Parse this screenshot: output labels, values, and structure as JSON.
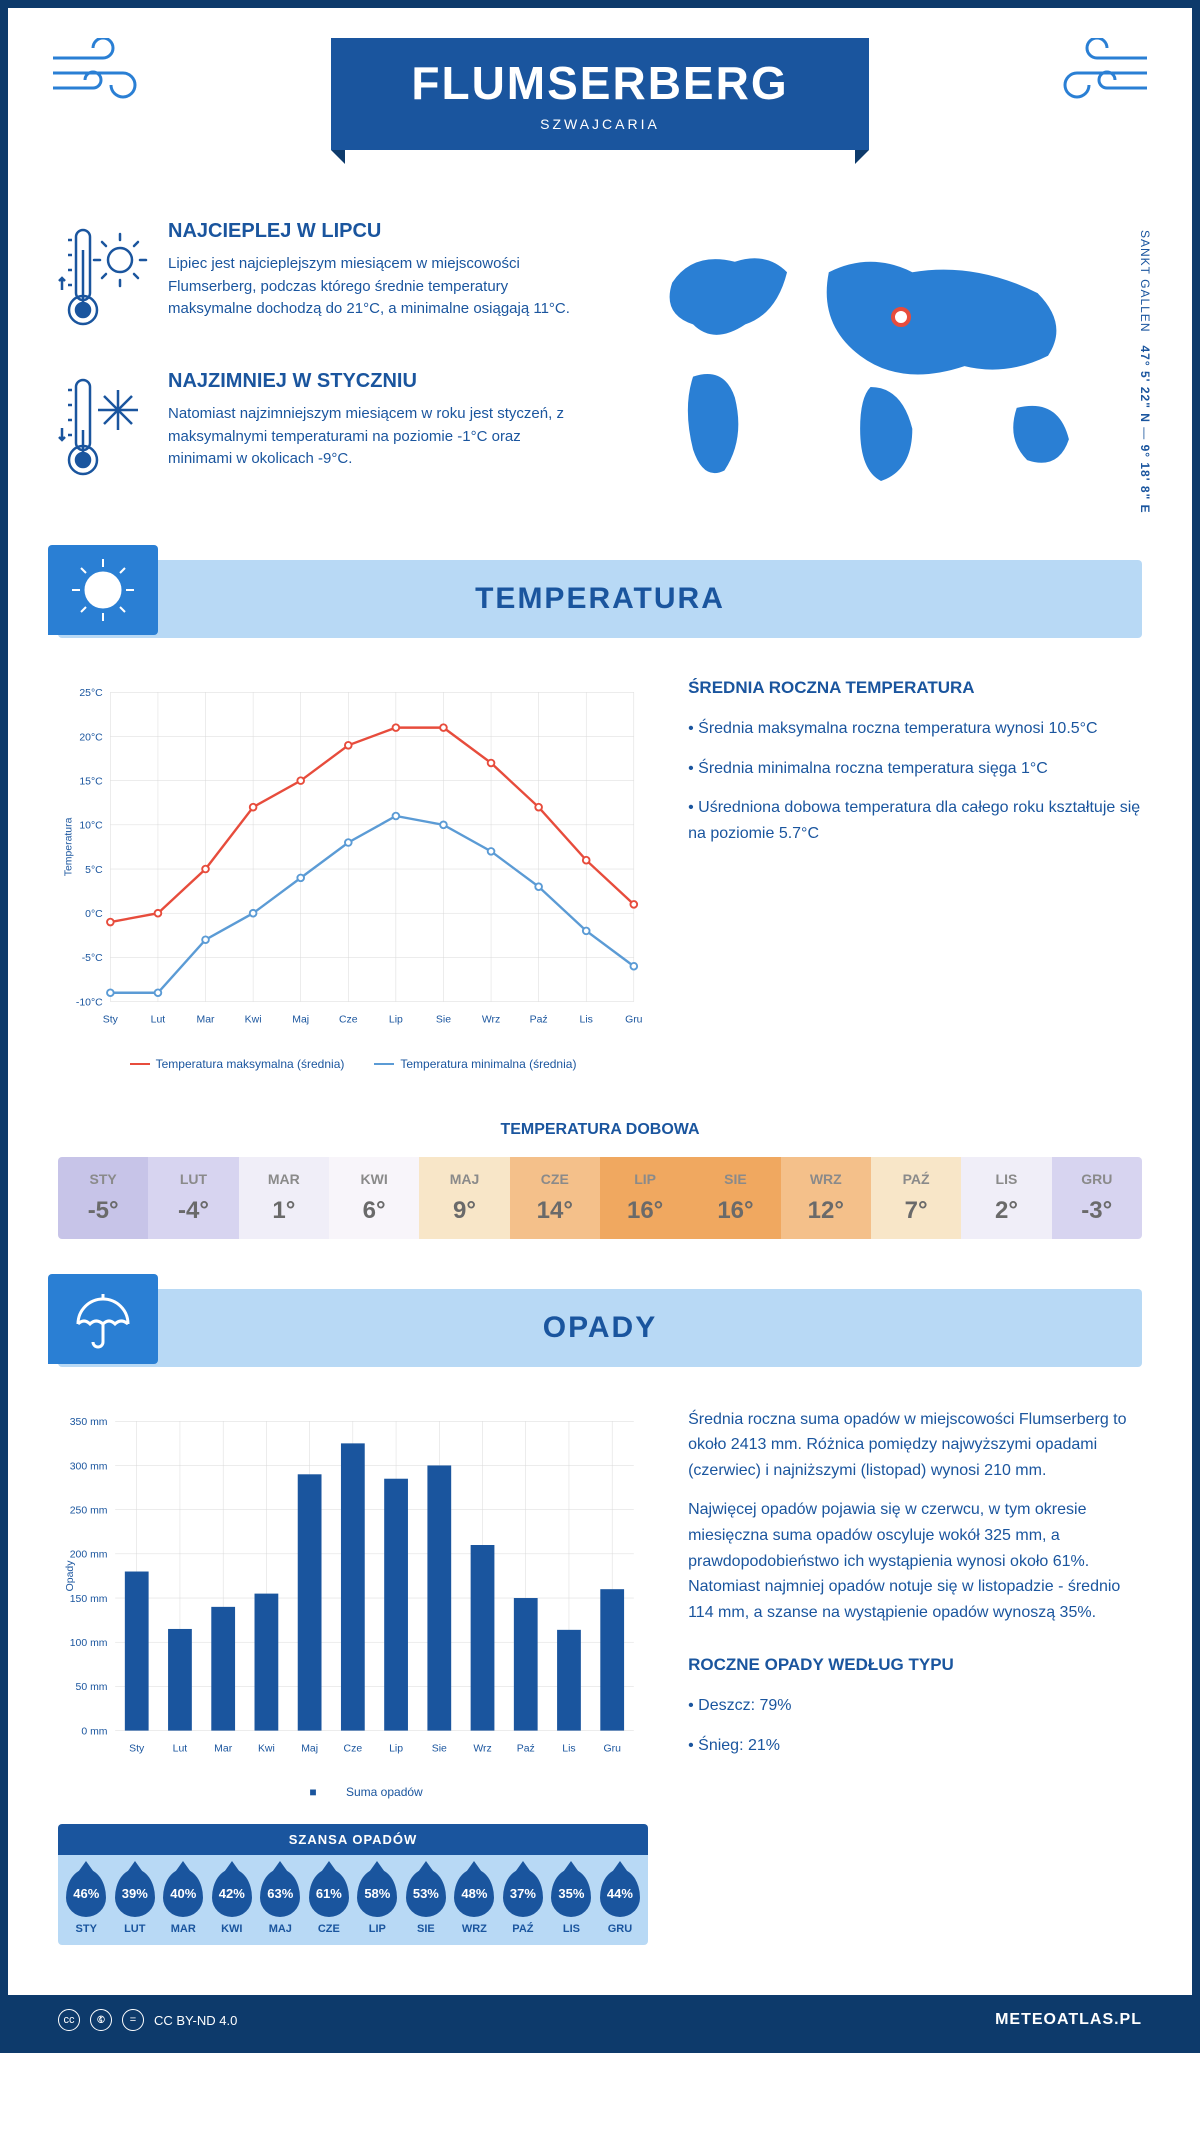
{
  "header": {
    "title": "FLUMSERBERG",
    "subtitle": "SZWAJCARIA"
  },
  "coords": {
    "lat": "47° 5' 22\" N",
    "lon": "9° 18' 8\" E",
    "region": "SANKT GALLEN"
  },
  "marker_pos": {
    "left_pct": 52,
    "top_pct": 29
  },
  "facts": {
    "hot": {
      "title": "NAJCIEPLEJ W LIPCU",
      "text": "Lipiec jest najcieplejszym miesiącem w miejscowości Flumserberg, podczas którego średnie temperatury maksymalne dochodzą do 21°C, a minimalne osiągają 11°C."
    },
    "cold": {
      "title": "NAJZIMNIEJ W STYCZNIU",
      "text": "Natomiast najzimniejszym miesiącem w roku jest styczeń, z maksymalnymi temperaturami na poziomie -1°C oraz minimami w okolicach -9°C."
    }
  },
  "temperature": {
    "section_title": "TEMPERATURA",
    "avg_title": "ŚREDNIA ROCZNA TEMPERATURA",
    "bullets": [
      "Średnia maksymalna roczna temperatura wynosi 10.5°C",
      "Średnia minimalna roczna temperatura sięga 1°C",
      "Uśredniona dobowa temperatura dla całego roku kształtuje się na poziomie 5.7°C"
    ],
    "months": [
      "Sty",
      "Lut",
      "Mar",
      "Kwi",
      "Maj",
      "Cze",
      "Lip",
      "Sie",
      "Wrz",
      "Paź",
      "Lis",
      "Gru"
    ],
    "max_series": [
      -1,
      0,
      5,
      12,
      15,
      19,
      21,
      21,
      17,
      12,
      6,
      1
    ],
    "min_series": [
      -9,
      -9,
      -3,
      0,
      4,
      8,
      11,
      10,
      7,
      3,
      -2,
      -6
    ],
    "max_color": "#e74c3c",
    "min_color": "#5b9bd5",
    "ylim": [
      -10,
      25
    ],
    "ytick_step": 5,
    "ylabel": "Temperatura",
    "legend_max": "Temperatura maksymalna (średnia)",
    "legend_min": "Temperatura minimalna (średnia)",
    "grid_color": "#d8d8d8",
    "line_width": 2.5
  },
  "daily": {
    "title": "TEMPERATURA DOBOWA",
    "months": [
      "STY",
      "LUT",
      "MAR",
      "KWI",
      "MAJ",
      "CZE",
      "LIP",
      "SIE",
      "WRZ",
      "PAŹ",
      "LIS",
      "GRU"
    ],
    "values": [
      "-5°",
      "-4°",
      "1°",
      "6°",
      "9°",
      "14°",
      "16°",
      "16°",
      "12°",
      "7°",
      "2°",
      "-3°"
    ],
    "bg_colors": [
      "#c7c4e8",
      "#d7d4f0",
      "#f0eef8",
      "#f8f5fa",
      "#f8e6c8",
      "#f4c08a",
      "#f0a860",
      "#f0a860",
      "#f4c08a",
      "#f8e6c8",
      "#f0eef8",
      "#d7d4f0"
    ],
    "header_text_color": "#8a8a8a",
    "value_text_color": "#6a6a6a"
  },
  "precipitation": {
    "section_title": "OPADY",
    "months": [
      "Sty",
      "Lut",
      "Mar",
      "Kwi",
      "Maj",
      "Cze",
      "Lip",
      "Sie",
      "Wrz",
      "Paź",
      "Lis",
      "Gru"
    ],
    "values": [
      180,
      115,
      140,
      155,
      290,
      325,
      285,
      300,
      210,
      150,
      114,
      160
    ],
    "bar_color": "#1a559e",
    "ylim": [
      0,
      350
    ],
    "ytick_step": 50,
    "ylabel": "Opady",
    "legend": "Suma opadów",
    "grid_color": "#d8d8d8",
    "text1": "Średnia roczna suma opadów w miejscowości Flumserberg to około 2413 mm. Różnica pomiędzy najwyższymi opadami (czerwiec) i najniższymi (listopad) wynosi 210 mm.",
    "text2": "Najwięcej opadów pojawia się w czerwcu, w tym okresie miesięczna suma opadów oscyluje wokół 325 mm, a prawdopodobieństwo ich wystąpienia wynosi około 61%. Natomiast najmniej opadów notuje się w listopadzie - średnio 114 mm, a szanse na wystąpienie opadów wynoszą 35%.",
    "type_title": "ROCZNE OPADY WEDŁUG TYPU",
    "type_bullets": [
      "Deszcz: 79%",
      "Śnieg: 21%"
    ]
  },
  "chance": {
    "title": "SZANSA OPADÓW",
    "months": [
      "STY",
      "LUT",
      "MAR",
      "KWI",
      "MAJ",
      "CZE",
      "LIP",
      "SIE",
      "WRZ",
      "PAŹ",
      "LIS",
      "GRU"
    ],
    "values": [
      "46%",
      "39%",
      "40%",
      "42%",
      "63%",
      "61%",
      "58%",
      "53%",
      "48%",
      "37%",
      "35%",
      "44%"
    ],
    "drop_color": "#1a559e",
    "bg_color": "#b8d9f5"
  },
  "footer": {
    "license": "CC BY-ND 4.0",
    "site": "METEOATLAS.PL"
  }
}
